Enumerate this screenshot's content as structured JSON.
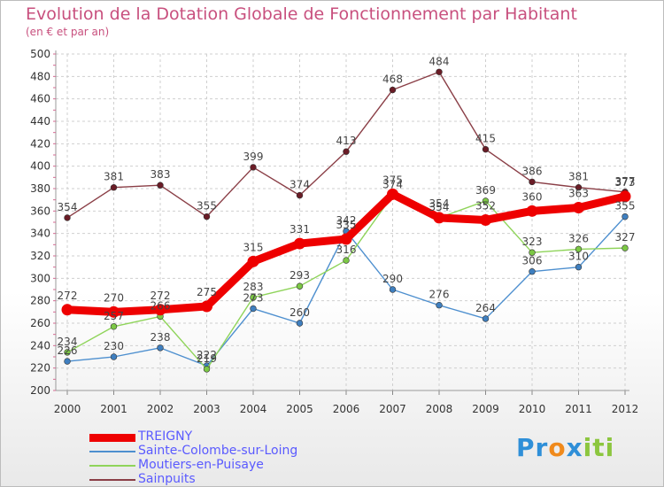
{
  "chart_data": {
    "type": "line",
    "title": "Evolution de la Dotation Globale de Fonctionnement par Habitant",
    "subtitle": "(en € et par an)",
    "x": [
      "2000",
      "2001",
      "2002",
      "2003",
      "2004",
      "2005",
      "2006",
      "2007",
      "2008",
      "2009",
      "2010",
      "2011",
      "2012"
    ],
    "ylim": [
      200,
      500
    ],
    "yticks": [
      200,
      220,
      240,
      260,
      280,
      300,
      320,
      340,
      360,
      380,
      400,
      420,
      440,
      460,
      480,
      500
    ],
    "grid": true,
    "legend_position": "bottom-left",
    "series": [
      {
        "name": "TREIGNY",
        "color": "#ee0000",
        "emphasis": true,
        "values": [
          272,
          270,
          272,
          275,
          315,
          331,
          335,
          375,
          354,
          352,
          360,
          363,
          373
        ],
        "labels": [
          "272",
          "270",
          "272",
          "275",
          "315",
          "331",
          "335",
          "375",
          "354",
          "352",
          "360",
          "363",
          "373"
        ]
      },
      {
        "name": "Sainte-Colombe-sur-Loing",
        "color": "#4d8fcf",
        "marker": "#3f7fbf",
        "values": [
          226,
          230,
          238,
          222,
          273,
          260,
          342,
          290,
          276,
          264,
          306,
          310,
          355
        ],
        "labels": [
          "226",
          "230",
          "238",
          "222",
          "273",
          "260",
          "342",
          "290",
          "276",
          "264",
          "306",
          "310",
          "355"
        ]
      },
      {
        "name": "Moutiers-en-Puisaye",
        "color": "#8fd45a",
        "marker": "#7cc845",
        "values": [
          234,
          257,
          266,
          219,
          283,
          293,
          316,
          374,
          354,
          369,
          323,
          326,
          327
        ],
        "labels": [
          "234",
          "257",
          "266",
          "219",
          "283",
          "293",
          "316",
          "374",
          "354",
          "369",
          "323",
          "326",
          "327"
        ]
      },
      {
        "name": "Sainpuits",
        "color": "#8a3e46",
        "marker": "#6a1c26",
        "values": [
          354,
          381,
          383,
          355,
          399,
          374,
          413,
          468,
          484,
          415,
          386,
          381,
          377
        ],
        "labels": [
          "354",
          "381",
          "383",
          "355",
          "399",
          "374",
          "413",
          "468",
          "484",
          "415",
          "386",
          "381",
          "377"
        ]
      }
    ]
  },
  "brand": {
    "logo_text": "Proxiti"
  }
}
